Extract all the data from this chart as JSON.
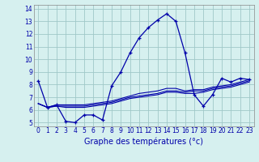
{
  "title": "",
  "xlabel": "Graphe des températures (°c)",
  "ylabel": "",
  "background_color": "#d6f0ef",
  "grid_color": "#a0c8c8",
  "line_color": "#0000aa",
  "xlim": [
    -0.5,
    23.5
  ],
  "ylim": [
    4.7,
    14.3
  ],
  "yticks": [
    5,
    6,
    7,
    8,
    9,
    10,
    11,
    12,
    13,
    14
  ],
  "xticks": [
    0,
    1,
    2,
    3,
    4,
    5,
    6,
    7,
    8,
    9,
    10,
    11,
    12,
    13,
    14,
    15,
    16,
    17,
    18,
    19,
    20,
    21,
    22,
    23
  ],
  "curve1_x": [
    0,
    1,
    2,
    3,
    4,
    5,
    6,
    7,
    8,
    9,
    10,
    11,
    12,
    13,
    14,
    15,
    16,
    17,
    18,
    19,
    20,
    21,
    22,
    23
  ],
  "curve1_y": [
    8.3,
    6.2,
    6.4,
    5.1,
    5.0,
    5.6,
    5.6,
    5.2,
    7.9,
    9.0,
    10.5,
    11.7,
    12.5,
    13.1,
    13.6,
    13.0,
    10.5,
    7.2,
    6.3,
    7.2,
    8.5,
    8.2,
    8.5,
    8.4
  ],
  "curve2_x": [
    0,
    1,
    2,
    3,
    4,
    5,
    6,
    7,
    8,
    9,
    10,
    11,
    12,
    13,
    14,
    15,
    16,
    17,
    18,
    19,
    20,
    21,
    22,
    23
  ],
  "curve2_y": [
    6.5,
    6.2,
    6.3,
    6.3,
    6.3,
    6.3,
    6.4,
    6.5,
    6.6,
    6.8,
    7.0,
    7.1,
    7.2,
    7.3,
    7.5,
    7.5,
    7.4,
    7.5,
    7.5,
    7.7,
    7.8,
    7.9,
    8.1,
    8.3
  ],
  "curve3_x": [
    0,
    1,
    2,
    3,
    4,
    5,
    6,
    7,
    8,
    9,
    10,
    11,
    12,
    13,
    14,
    15,
    16,
    17,
    18,
    19,
    20,
    21,
    22,
    23
  ],
  "curve3_y": [
    6.5,
    6.2,
    6.3,
    6.2,
    6.2,
    6.2,
    6.3,
    6.4,
    6.5,
    6.7,
    6.9,
    7.0,
    7.1,
    7.2,
    7.4,
    7.4,
    7.3,
    7.3,
    7.4,
    7.6,
    7.7,
    7.8,
    8.0,
    8.2
  ],
  "curve4_x": [
    0,
    1,
    2,
    3,
    4,
    5,
    6,
    7,
    8,
    9,
    10,
    11,
    12,
    13,
    14,
    15,
    16,
    17,
    18,
    19,
    20,
    21,
    22,
    23
  ],
  "curve4_y": [
    6.5,
    6.2,
    6.4,
    6.4,
    6.4,
    6.4,
    6.5,
    6.6,
    6.7,
    6.9,
    7.1,
    7.3,
    7.4,
    7.5,
    7.7,
    7.7,
    7.5,
    7.6,
    7.6,
    7.8,
    7.9,
    8.0,
    8.2,
    8.4
  ],
  "tick_fontsize": 5.5,
  "xlabel_fontsize": 7
}
